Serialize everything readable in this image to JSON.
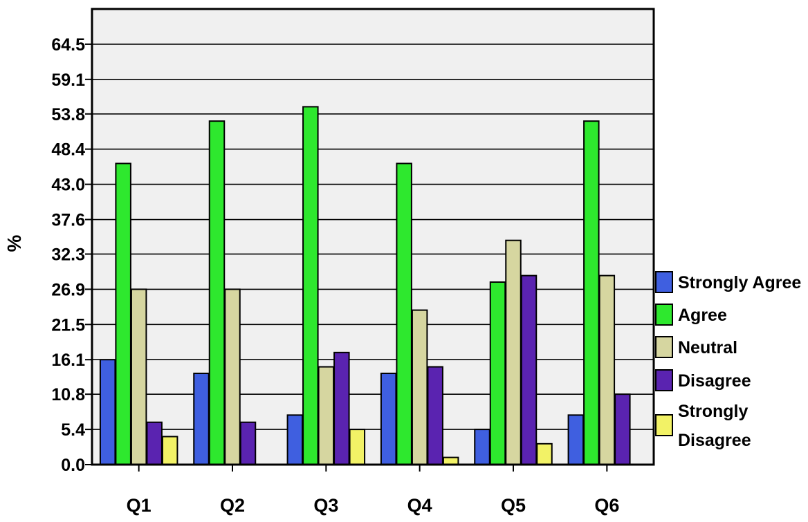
{
  "chart_data": {
    "type": "bar",
    "ylabel": "%",
    "xlabel": "",
    "ylim": [
      0,
      69.9
    ],
    "y_ticks": [
      "0.0",
      "5.4",
      "10.8",
      "16.1",
      "21.5",
      "26.9",
      "32.3",
      "37.6",
      "43.0",
      "48.4",
      "53.8",
      "59.1",
      "64.5"
    ],
    "grid": true,
    "legend_position": "right",
    "categories": [
      "Q1",
      "Q2",
      "Q3",
      "Q4",
      "Q5",
      "Q6"
    ],
    "series": [
      {
        "name": "Strongly Agree",
        "legend_lines": [
          "Strongly Agree"
        ],
        "color": "#3f5fe0",
        "values": [
          16.1,
          14.0,
          7.6,
          14.0,
          5.4,
          7.6
        ]
      },
      {
        "name": "Agree",
        "legend_lines": [
          "Agree"
        ],
        "color": "#2ee82e",
        "values": [
          46.2,
          52.7,
          54.9,
          46.2,
          28.0,
          52.7
        ]
      },
      {
        "name": "Neutral",
        "legend_lines": [
          "Neutral"
        ],
        "color": "#d6d6a0",
        "values": [
          26.9,
          26.9,
          15.0,
          23.7,
          34.4,
          29.0
        ]
      },
      {
        "name": "Disagree",
        "legend_lines": [
          "Disagree"
        ],
        "color": "#5a23b0",
        "values": [
          6.5,
          6.5,
          17.2,
          15.0,
          29.0,
          10.8
        ]
      },
      {
        "name": "Strongly Disagree",
        "legend_lines": [
          "Strongly",
          "Disagree"
        ],
        "color": "#f2f266",
        "values": [
          4.3,
          null,
          5.4,
          1.1,
          3.2,
          null
        ]
      }
    ]
  }
}
